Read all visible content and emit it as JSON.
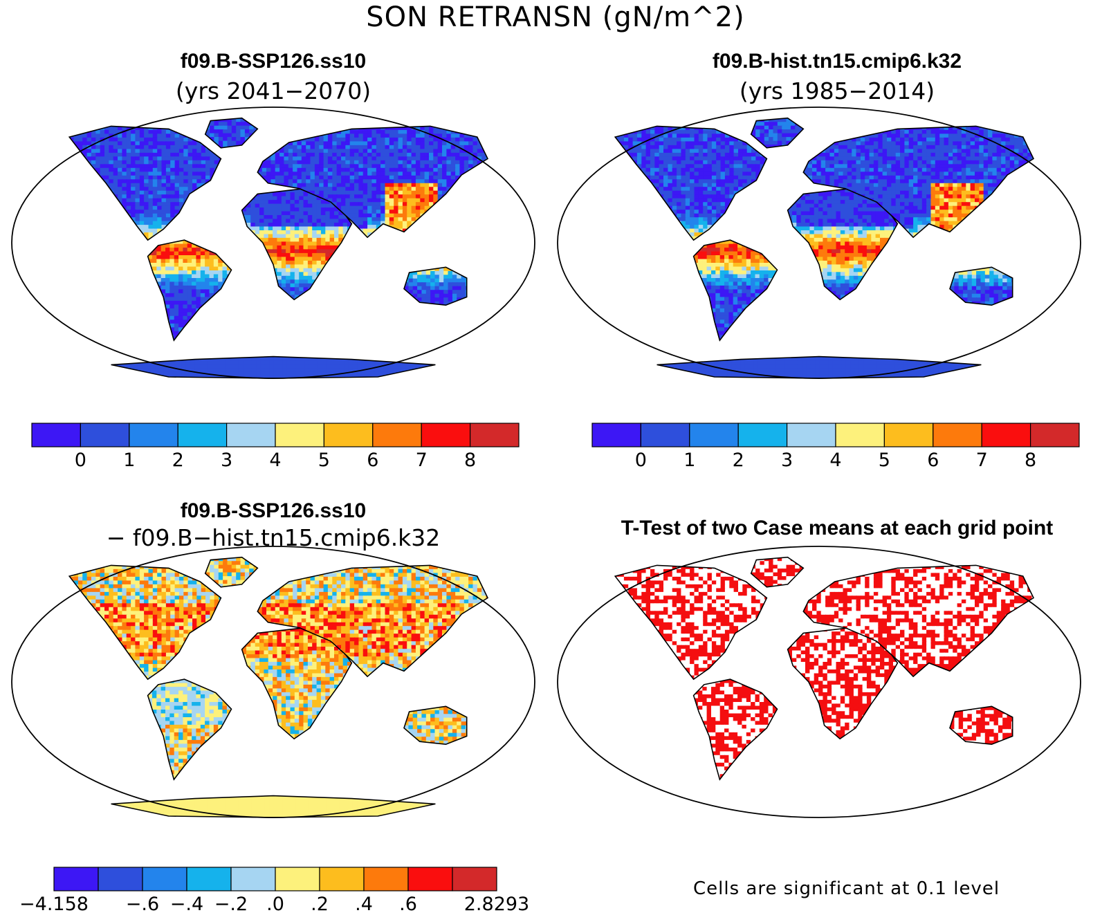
{
  "figure": {
    "title": "SON RETRANSN (gN/m^2)"
  },
  "colors": {
    "scale": [
      "#3d17f5",
      "#2e4fdc",
      "#2384ec",
      "#15b2ec",
      "#a6d5f2",
      "#fdf17c",
      "#fdbd1e",
      "#fd7a0c",
      "#fa0e0e",
      "#d3292a"
    ],
    "ocean": "#ffffff",
    "coast": "#000000",
    "significant": "#f40e10"
  },
  "panels": {
    "top_left": {
      "title": "f09.B-SSP126.ss10",
      "subtitle": "(yrs 2041−2070)",
      "colorbar_ticks": [
        "0",
        "1",
        "2",
        "3",
        "4",
        "5",
        "6",
        "7",
        "8"
      ]
    },
    "top_right": {
      "title": "f09.B-hist.tn15.cmip6.k32",
      "subtitle": "(yrs 1985−2014)",
      "colorbar_ticks": [
        "0",
        "1",
        "2",
        "3",
        "4",
        "5",
        "6",
        "7",
        "8"
      ]
    },
    "bottom_left": {
      "title": "f09.B-SSP126.ss10",
      "subtitle": "− f09.B−hist.tn15.cmip6.k32",
      "colorbar_ticks": [
        "−4.158",
        "−.6",
        "−.4",
        "−.2",
        ".0",
        ".2",
        ".4",
        ".6",
        "2.8293"
      ]
    },
    "bottom_right": {
      "title": "T-Test of two Case means at each grid point",
      "note": "Cells are significant at 0.1 level"
    }
  }
}
